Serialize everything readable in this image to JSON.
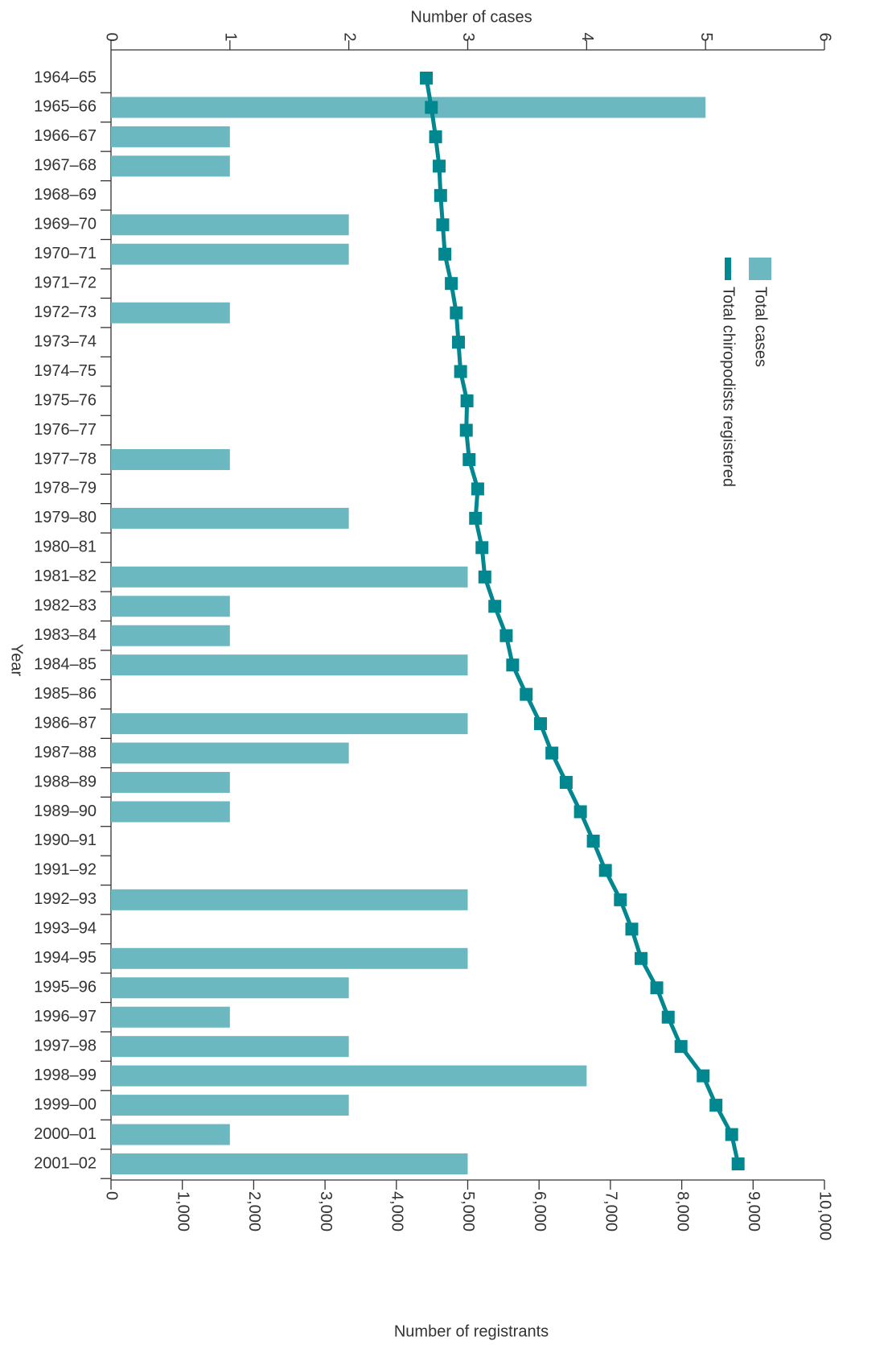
{
  "chart_data": {
    "type": "bar",
    "orientation": "horizontal",
    "ylabel": "Year",
    "xlabel": "Number of registrants",
    "x2label": "Number of cases",
    "categories": [
      "1964–65",
      "1965–66",
      "1966–67",
      "1967–68",
      "1968–69",
      "1969–70",
      "1970–71",
      "1971–72",
      "1972–73",
      "1973–74",
      "1974–75",
      "1975–76",
      "1976–77",
      "1977–78",
      "1978–79",
      "1979–80",
      "1980–81",
      "1981–82",
      "1982–83",
      "1983–84",
      "1984–85",
      "1985–86",
      "1986–87",
      "1987–88",
      "1988–89",
      "1989–90",
      "1990–91",
      "1991–92",
      "1992–93",
      "1993–94",
      "1994–95",
      "1995–96",
      "1996–97",
      "1997–98",
      "1998–99",
      "1999–00",
      "2000–01",
      "2001–02"
    ],
    "series": [
      {
        "name": "Total cases",
        "type": "bar",
        "axis": "x2",
        "color": "#6cb8c1",
        "values": [
          0,
          5,
          1,
          1,
          0,
          2,
          2,
          0,
          1,
          0,
          0,
          0,
          0,
          1,
          0,
          2,
          0,
          3,
          1,
          1,
          3,
          0,
          3,
          2,
          1,
          1,
          0,
          0,
          3,
          0,
          3,
          2,
          1,
          2,
          4,
          2,
          1,
          3
        ]
      },
      {
        "name": "Total chiropodists registered",
        "type": "line",
        "axis": "x",
        "color": "#00878f",
        "values": [
          4420,
          4490,
          4550,
          4600,
          4620,
          4650,
          4680,
          4770,
          4840,
          4870,
          4900,
          4990,
          4980,
          5020,
          5140,
          5110,
          5200,
          5240,
          5380,
          5540,
          5630,
          5820,
          6020,
          6180,
          6380,
          6580,
          6760,
          6930,
          7140,
          7300,
          7430,
          7650,
          7810,
          7990,
          8300,
          8480,
          8700,
          8790
        ]
      }
    ],
    "xlim": [
      0,
      10000
    ],
    "xticks": [
      0,
      {
        "value": 1000,
        "label": "1,000"
      },
      {
        "value": 2000,
        "label": "2,000"
      },
      {
        "value": 3000,
        "label": "3,000"
      },
      {
        "value": 4000,
        "label": "4,000"
      },
      {
        "value": 5000,
        "label": "5,000"
      },
      {
        "value": 6000,
        "label": "6,000"
      },
      {
        "value": 7000,
        "label": "7,000"
      },
      {
        "value": 8000,
        "label": "8,000"
      },
      {
        "value": 9000,
        "label": "9,000"
      },
      {
        "value": 10000,
        "label": "10,000"
      }
    ],
    "x2lim": [
      0,
      6
    ],
    "x2ticks": [
      0,
      1,
      2,
      3,
      4,
      5,
      6
    ],
    "legend": "right"
  }
}
